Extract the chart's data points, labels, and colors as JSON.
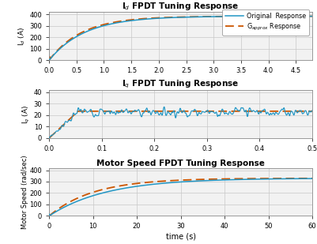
{
  "title1": "I$_d$ FPDT Tuning Response",
  "title2": "I$_q$ FPDT Tuning Response",
  "title3": "Motor Speed FPDT Tuning Response",
  "ylabel1": "I$_d$ (A)",
  "ylabel2": "I$_q$ (A)",
  "ylabel3": "Motor Speed (rad/sec)",
  "xlabel": "time (s)",
  "legend_original": "Original  Response",
  "legend_approx": "G$_{approx}$ Response",
  "color_original": "#2196c4",
  "color_approx": "#cc5500",
  "plot1_xlim": [
    0,
    4.8
  ],
  "plot1_ylim": [
    0,
    420
  ],
  "plot1_xticks": [
    0,
    0.5,
    1.0,
    1.5,
    2.0,
    2.5,
    3.0,
    3.5,
    4.0,
    4.5
  ],
  "plot1_yticks": [
    0,
    100,
    200,
    300,
    400
  ],
  "plot2_xlim": [
    0,
    0.5
  ],
  "plot2_ylim": [
    0,
    42
  ],
  "plot2_xticks": [
    0,
    0.1,
    0.2,
    0.3,
    0.4,
    0.5
  ],
  "plot2_yticks": [
    0,
    10,
    20,
    30,
    40
  ],
  "plot3_xlim": [
    0,
    60
  ],
  "plot3_ylim": [
    0,
    420
  ],
  "plot3_xticks": [
    0,
    10,
    20,
    30,
    40,
    50,
    60
  ],
  "plot3_yticks": [
    0,
    100,
    200,
    300,
    400
  ],
  "bg_color": "#f2f2f2"
}
